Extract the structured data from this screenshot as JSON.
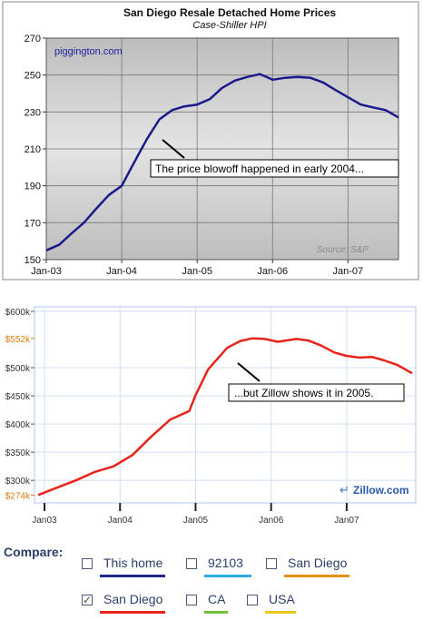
{
  "chart_data": [
    {
      "type": "line",
      "title": "San Diego Resale Detached Home Prices",
      "subtitle": "Case-Shiller HPI",
      "watermark": "piggington.com",
      "source_note": "Source: S&P",
      "annotation": "The price blowoff happened in early 2004...",
      "x_ticks": [
        "Jan-03",
        "Jan-04",
        "Jan-05",
        "Jan-06",
        "Jan-07"
      ],
      "y_ticks": [
        150,
        170,
        190,
        210,
        230,
        250,
        270
      ],
      "ylim": [
        150,
        270
      ],
      "xlim": [
        2003.0,
        2007.67
      ],
      "grid": true,
      "line_color": "#1a1a8c",
      "x": [
        2003.0,
        2003.17,
        2003.33,
        2003.5,
        2003.67,
        2003.83,
        2004.0,
        2004.17,
        2004.33,
        2004.5,
        2004.67,
        2004.83,
        2005.0,
        2005.17,
        2005.33,
        2005.5,
        2005.67,
        2005.83,
        2005.92,
        2006.0,
        2006.17,
        2006.33,
        2006.5,
        2006.67,
        2006.83,
        2007.0,
        2007.17,
        2007.33,
        2007.5,
        2007.67
      ],
      "y": [
        155,
        158,
        164,
        170,
        178,
        185,
        190,
        203,
        215,
        226,
        231,
        233,
        234,
        237,
        243,
        247,
        249,
        250.5,
        249,
        247.5,
        248.5,
        249,
        248.5,
        246,
        242,
        238,
        234,
        232.5,
        231,
        227
      ]
    },
    {
      "type": "line",
      "annotation": "...but Zillow shows it in 2005.",
      "logo": "Zillow.com",
      "x_ticks": [
        "Jan03",
        "Jan04",
        "Jan05",
        "Jan06",
        "Jan07"
      ],
      "y_ticks": [
        "$300k",
        "$350k",
        "$400k",
        "$450k",
        "$500k",
        "$600k"
      ],
      "y_tick_values": [
        300,
        350,
        400,
        450,
        500,
        600
      ],
      "highlight_labels": [
        "$552k",
        "$274k"
      ],
      "highlight_values": [
        552,
        274
      ],
      "highlight_color": "#e07a10",
      "ylim": [
        260,
        608
      ],
      "xlim": [
        2003.0,
        2007.95
      ],
      "grid": true,
      "line_color": "#e8231a",
      "x": [
        2003.0,
        2003.25,
        2003.5,
        2003.75,
        2004.0,
        2004.25,
        2004.5,
        2004.75,
        2005.0,
        2005.08,
        2005.25,
        2005.5,
        2005.67,
        2005.83,
        2006.0,
        2006.17,
        2006.42,
        2006.58,
        2006.75,
        2006.92,
        2007.08,
        2007.25,
        2007.42,
        2007.58,
        2007.75,
        2007.95
      ],
      "y": [
        274,
        287,
        300,
        315,
        325,
        345,
        378,
        408,
        423,
        450,
        497,
        535,
        547,
        552,
        551,
        546,
        551,
        548,
        539,
        527,
        521,
        518,
        519,
        513,
        505,
        490
      ]
    }
  ],
  "compare": {
    "label": "Compare:",
    "items": [
      {
        "label": "This home",
        "checked": false,
        "color": "#1a2a8c"
      },
      {
        "label": "92103",
        "checked": false,
        "color": "#2ab0e0"
      },
      {
        "label": "San Diego",
        "checked": false,
        "color": "#e8901a"
      },
      {
        "label": "San Diego",
        "checked": true,
        "color": "#e8231a"
      },
      {
        "label": "CA",
        "checked": false,
        "color": "#6ac23a"
      },
      {
        "label": "USA",
        "checked": false,
        "color": "#e8c81a"
      }
    ]
  }
}
